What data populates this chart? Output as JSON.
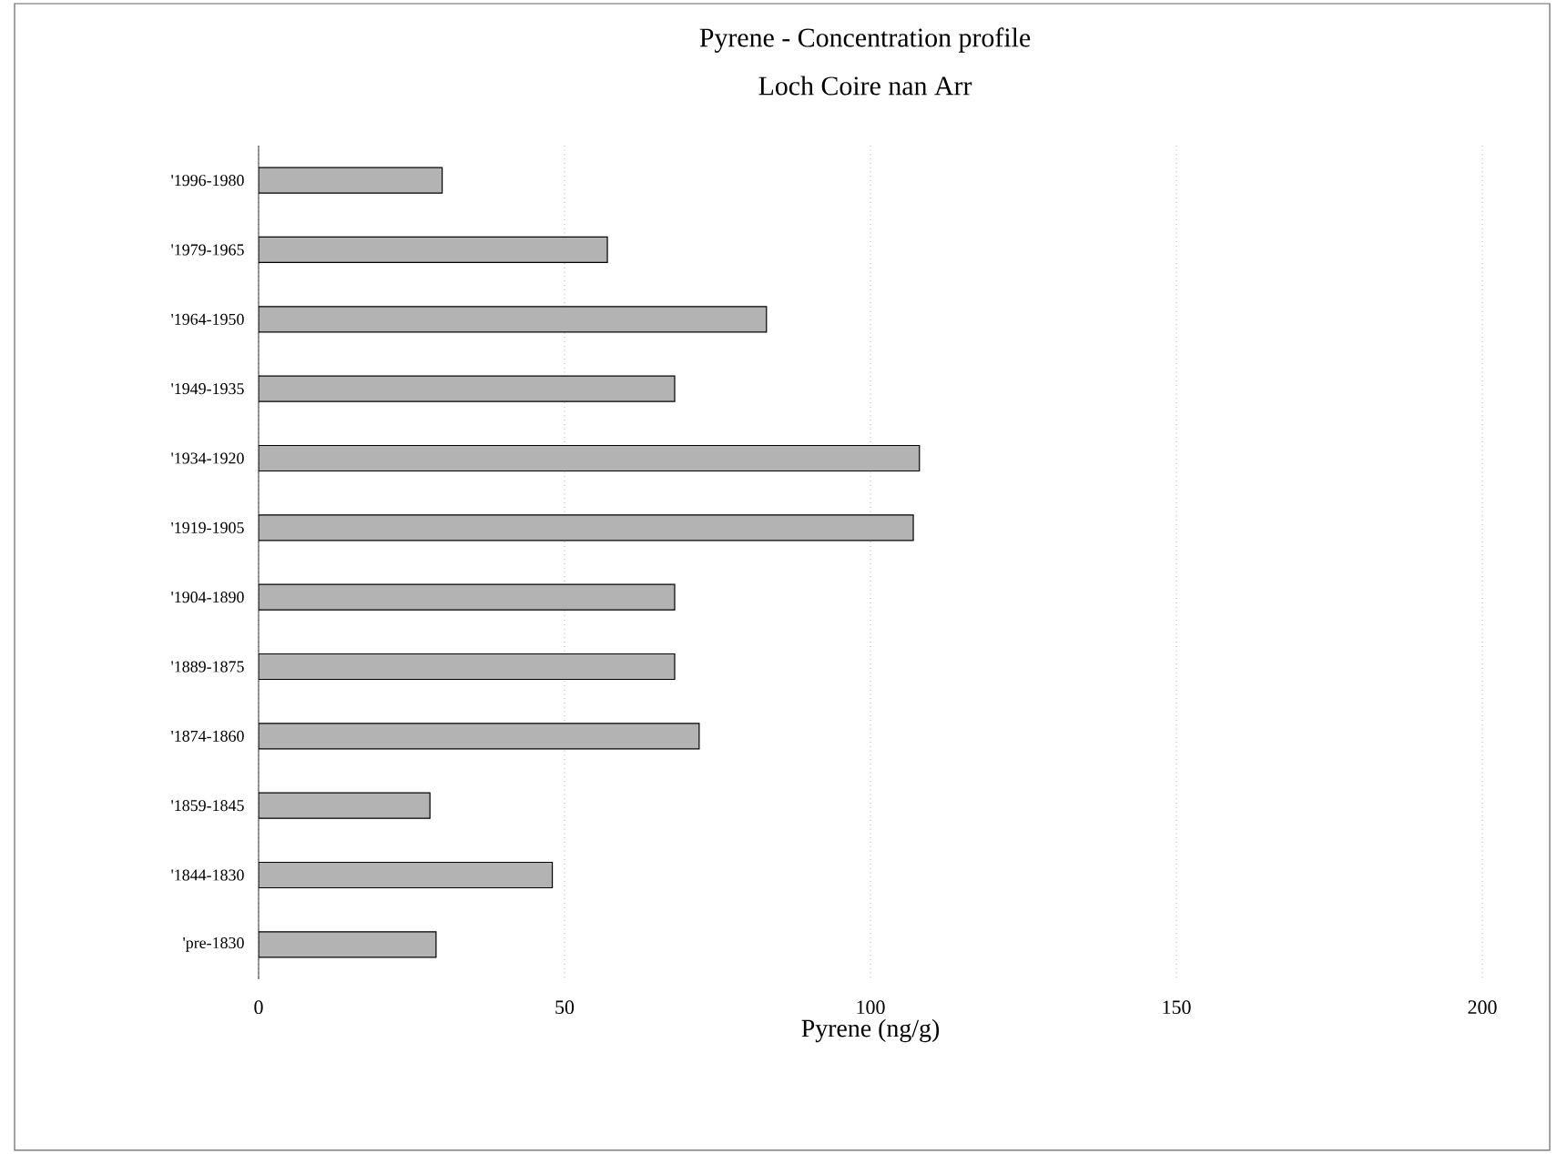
{
  "chart_data": {
    "type": "bar",
    "orientation": "horizontal",
    "title": "Pyrene - Concentration profile",
    "subtitle": "Loch Coire nan Arr",
    "xlabel": "Pyrene (ng/g)",
    "categories": [
      "'1996-1980",
      "'1979-1965",
      "'1964-1950",
      "'1949-1935",
      "'1934-1920",
      "'1919-1905",
      "'1904-1890",
      "'1889-1875",
      "'1874-1860",
      "'1859-1845",
      "'1844-1830",
      "'pre-1830"
    ],
    "values": [
      30,
      57,
      83,
      68,
      108,
      107,
      68,
      68,
      72,
      28,
      48,
      29
    ],
    "color": "#b3b3b3",
    "xlim": [
      0,
      200
    ],
    "xticks": [
      0,
      50,
      100,
      150,
      200
    ],
    "grid": "x"
  }
}
